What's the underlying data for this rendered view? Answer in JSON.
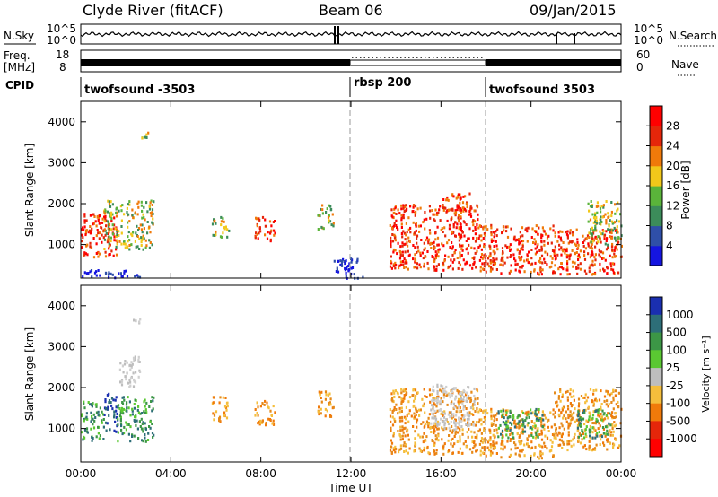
{
  "header": {
    "station": "Clyde River (fitACF)",
    "beam": "Beam 06",
    "date": "09/Jan/2015"
  },
  "strip_panels": {
    "nsky": {
      "left_label": "N.Sky",
      "left_ticks": [
        "10^5",
        "10^0"
      ],
      "right_label": "N.Search",
      "right_ticks": [
        "10^5",
        "10^0"
      ]
    },
    "freq": {
      "left_label_1": "Freq.",
      "left_label_2": "[MHz]",
      "left_ticks": [
        "18",
        "8"
      ],
      "right_label": "Nave",
      "right_ticks": [
        "60",
        "0"
      ]
    },
    "cpid": {
      "label": "CPID",
      "segments": [
        {
          "name": "twofsound -3503",
          "start_hour": 0
        },
        {
          "name": "rbsp 200",
          "start_hour": 12
        },
        {
          "name": "twofsound 3503",
          "start_hour": 18
        }
      ]
    }
  },
  "chart_data": [
    {
      "type": "heatmap",
      "title": "",
      "ylabel": "Slant Range [km]",
      "xlabel": "Time UT",
      "xlim_hours": [
        0,
        24
      ],
      "ylim": [
        180,
        4500
      ],
      "yticks": [
        1000,
        2000,
        3000,
        4000
      ],
      "colorbar": {
        "label": "Power [dB]",
        "ticks": [
          "4",
          "8",
          "12",
          "16",
          "20",
          "24",
          "28"
        ],
        "colors": [
          "#1515e0",
          "#2f4fa8",
          "#3c8c5a",
          "#5ab43a",
          "#f2c81a",
          "#f07a0a",
          "#e5260a",
          "#ff0000"
        ]
      },
      "series": [
        {
          "start_hour": 0.0,
          "end_hour": 1.6,
          "min_km": 700,
          "max_km": 1800,
          "level": "high"
        },
        {
          "start_hour": 0.0,
          "end_hour": 2.6,
          "min_km": 200,
          "max_km": 400,
          "level": "low"
        },
        {
          "start_hour": 1.0,
          "end_hour": 3.2,
          "min_km": 900,
          "max_km": 2100,
          "level": "mid"
        },
        {
          "start_hour": 2.5,
          "end_hour": 3.0,
          "min_km": 3600,
          "max_km": 3800,
          "level": "mid"
        },
        {
          "start_hour": 5.8,
          "end_hour": 6.6,
          "min_km": 1200,
          "max_km": 1700,
          "level": "mid"
        },
        {
          "start_hour": 7.7,
          "end_hour": 8.6,
          "min_km": 1100,
          "max_km": 1700,
          "level": "high"
        },
        {
          "start_hour": 10.5,
          "end_hour": 11.2,
          "min_km": 1400,
          "max_km": 2000,
          "level": "mid"
        },
        {
          "start_hour": 11.2,
          "end_hour": 12.5,
          "min_km": 200,
          "max_km": 700,
          "level": "low"
        },
        {
          "start_hour": 13.7,
          "end_hour": 17.6,
          "min_km": 400,
          "max_km": 2000,
          "level": "high"
        },
        {
          "start_hour": 16.0,
          "end_hour": 17.5,
          "min_km": 1800,
          "max_km": 2300,
          "level": "high"
        },
        {
          "start_hour": 17.6,
          "end_hour": 21.0,
          "min_km": 300,
          "max_km": 1500,
          "level": "high"
        },
        {
          "start_hour": 21.0,
          "end_hour": 24.0,
          "min_km": 300,
          "max_km": 1400,
          "level": "high"
        },
        {
          "start_hour": 22.5,
          "end_hour": 24.0,
          "min_km": 1000,
          "max_km": 2100,
          "level": "mid"
        }
      ]
    },
    {
      "type": "heatmap",
      "title": "",
      "ylabel": "Slant Range [km]",
      "xlabel": "Time UT",
      "xlim_hours": [
        0,
        24
      ],
      "ylim": [
        180,
        4500
      ],
      "yticks": [
        1000,
        2000,
        3000,
        4000
      ],
      "colorbar": {
        "label": "Velocity [m s⁻¹]",
        "ticks": [
          "1000",
          "500",
          "100",
          "25",
          "-25",
          "-100",
          "-500",
          "-1000"
        ],
        "colors": [
          "#1a2fb0",
          "#2d6e78",
          "#3c9646",
          "#5ac832",
          "#bebebe",
          "#f5be3c",
          "#f07a0a",
          "#e5260a",
          "#ff0000"
        ]
      },
      "series": [
        {
          "start_hour": 0.0,
          "end_hour": 1.0,
          "min_km": 700,
          "max_km": 1700,
          "level": "green"
        },
        {
          "start_hour": 1.0,
          "end_hour": 1.6,
          "min_km": 900,
          "max_km": 1900,
          "level": "blue"
        },
        {
          "start_hour": 1.6,
          "end_hour": 3.2,
          "min_km": 700,
          "max_km": 1800,
          "level": "green"
        },
        {
          "start_hour": 1.7,
          "end_hour": 2.6,
          "min_km": 2000,
          "max_km": 2800,
          "level": "gray"
        },
        {
          "start_hour": 2.3,
          "end_hour": 2.7,
          "min_km": 3600,
          "max_km": 3800,
          "level": "gray"
        },
        {
          "start_hour": 5.8,
          "end_hour": 6.5,
          "min_km": 1200,
          "max_km": 1800,
          "level": "orange"
        },
        {
          "start_hour": 7.7,
          "end_hour": 8.6,
          "min_km": 1100,
          "max_km": 1700,
          "level": "orange"
        },
        {
          "start_hour": 10.5,
          "end_hour": 11.2,
          "min_km": 1300,
          "max_km": 2000,
          "level": "orange"
        },
        {
          "start_hour": 13.7,
          "end_hour": 17.6,
          "min_km": 400,
          "max_km": 2000,
          "level": "orange"
        },
        {
          "start_hour": 15.5,
          "end_hour": 17.5,
          "min_km": 1000,
          "max_km": 2100,
          "level": "gray"
        },
        {
          "start_hour": 17.6,
          "end_hour": 21.0,
          "min_km": 300,
          "max_km": 1500,
          "level": "orange"
        },
        {
          "start_hour": 18.5,
          "end_hour": 20.5,
          "min_km": 800,
          "max_km": 1500,
          "level": "green"
        },
        {
          "start_hour": 21.0,
          "end_hour": 24.0,
          "min_km": 500,
          "max_km": 2000,
          "level": "orange"
        },
        {
          "start_hour": 22.0,
          "end_hour": 23.5,
          "min_km": 800,
          "max_km": 1500,
          "level": "green"
        }
      ]
    }
  ],
  "x_axis": {
    "ticks": [
      "00:00",
      "04:00",
      "08:00",
      "12:00",
      "16:00",
      "20:00",
      "00:00"
    ],
    "label": "Time UT"
  }
}
